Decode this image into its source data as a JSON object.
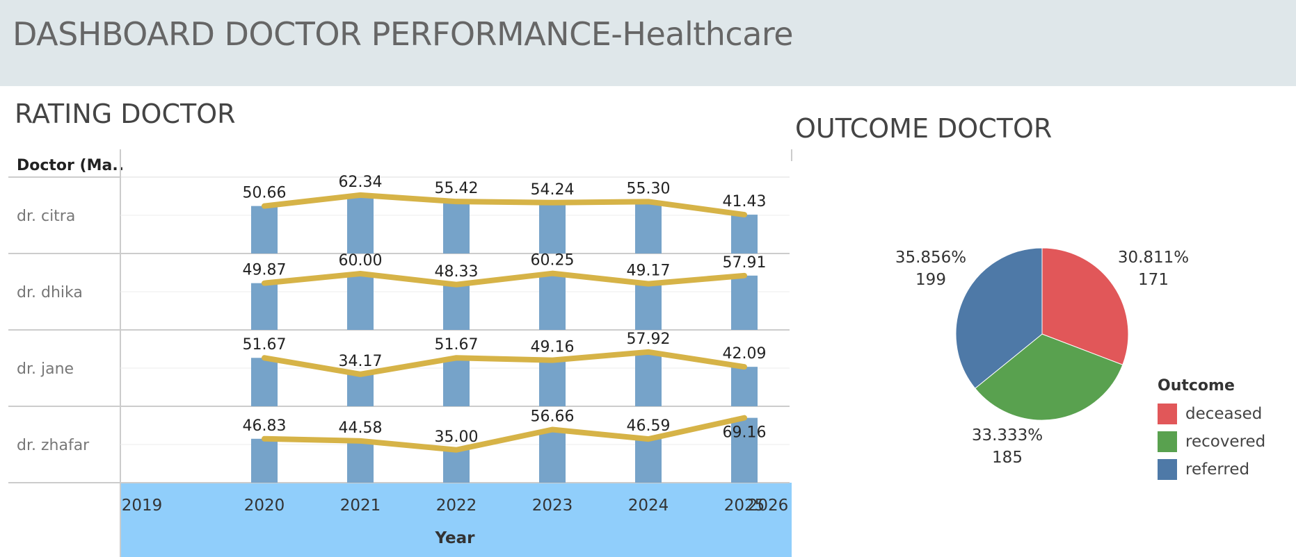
{
  "header": {
    "title": "DASHBOARD DOCTOR PERFORMANCE-Healthcare"
  },
  "colors": {
    "bar": "#76a3c9",
    "line": "#d6b347",
    "deceased": "#e15759",
    "recovered": "#59a14f",
    "referred": "#4e79a7",
    "axis_band": "#90cefb"
  },
  "chart_data": [
    {
      "type": "bar",
      "title": "RATING DOCTOR",
      "row_header": "Doctor (Ma..",
      "xlabel": "Year",
      "x_ticks": [
        "2019",
        "2020",
        "2021",
        "2022",
        "2023",
        "2024",
        "2025",
        "2026"
      ],
      "categories": [
        "2020",
        "2021",
        "2022",
        "2023",
        "2024",
        "2025"
      ],
      "series": [
        {
          "name": "dr. citra",
          "values": [
            50.66,
            62.34,
            55.42,
            54.24,
            55.3,
            41.43
          ]
        },
        {
          "name": "dr. dhika",
          "values": [
            49.87,
            60.0,
            48.33,
            60.25,
            49.17,
            57.91
          ]
        },
        {
          "name": "dr. jane",
          "values": [
            51.67,
            34.17,
            51.67,
            49.16,
            57.92,
            42.09
          ]
        },
        {
          "name": "dr. zhafar",
          "values": [
            46.83,
            44.58,
            35.0,
            56.66,
            46.59,
            69.16
          ]
        }
      ]
    },
    {
      "type": "pie",
      "title": "OUTCOME DOCTOR",
      "legend_title": "Outcome",
      "legend_placement": "bottom-right",
      "slices": [
        {
          "name": "deceased",
          "value": 171,
          "percent": "30.811%"
        },
        {
          "name": "recovered",
          "value": 185,
          "percent": "33.333%"
        },
        {
          "name": "referred",
          "value": 199,
          "percent": "35.856%"
        }
      ]
    }
  ]
}
